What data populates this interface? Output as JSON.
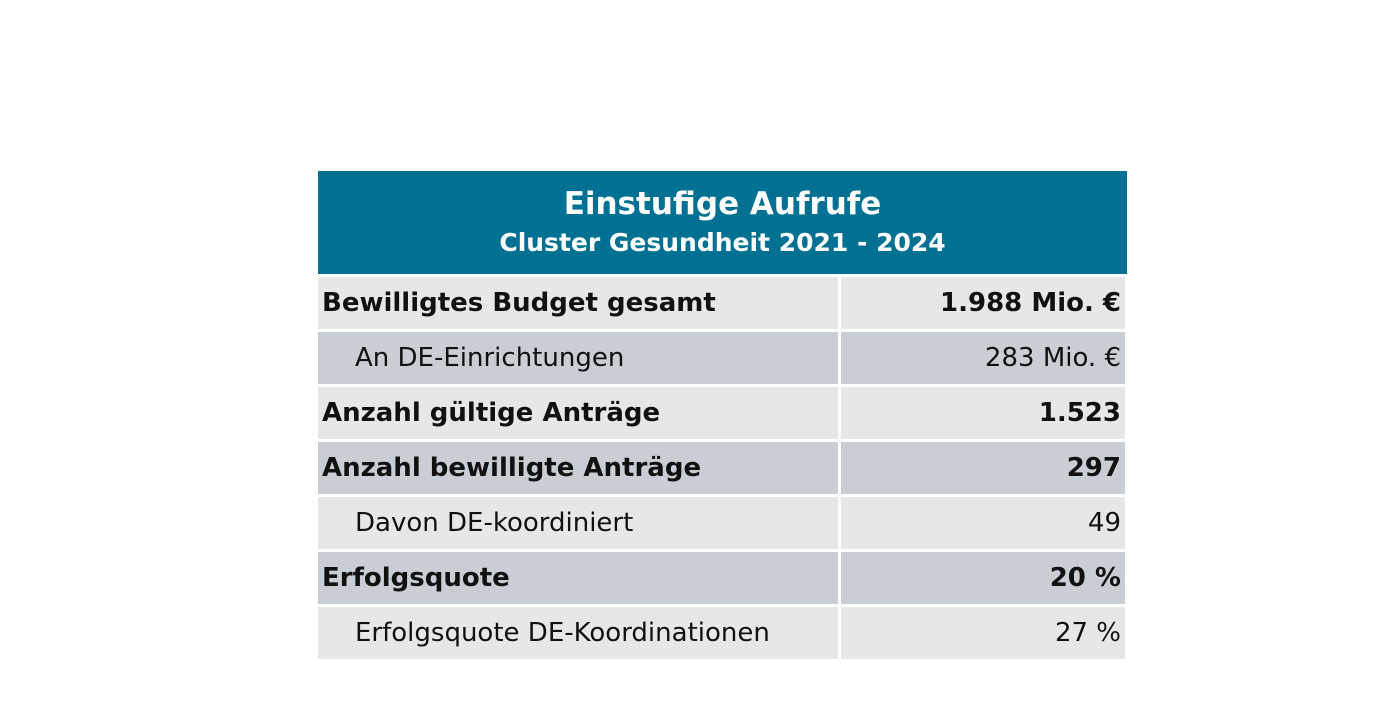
{
  "table": {
    "title": "Einstufige Aufrufe",
    "subtitle": "Cluster Gesundheit 2021 - 2024",
    "rows": [
      {
        "label": "Bewilligtes Budget gesamt",
        "value": "1.988 Mio. €",
        "bold": true,
        "indent": false,
        "shade": "light"
      },
      {
        "label": "An DE-Einrichtungen",
        "value": "283 Mio. €",
        "bold": false,
        "indent": true,
        "shade": "dark"
      },
      {
        "label": "Anzahl gültige Anträge",
        "value": "1.523",
        "bold": true,
        "indent": false,
        "shade": "light"
      },
      {
        "label": "Anzahl bewilligte Anträge",
        "value": "297",
        "bold": true,
        "indent": false,
        "shade": "dark"
      },
      {
        "label": "Davon DE-koordiniert",
        "value": "49",
        "bold": false,
        "indent": true,
        "shade": "light"
      },
      {
        "label": "Erfolgsquote",
        "value": "20 %",
        "bold": true,
        "indent": false,
        "shade": "dark"
      },
      {
        "label": "Erfolgsquote DE-Koordinationen",
        "value": "27 %",
        "bold": false,
        "indent": true,
        "shade": "light"
      }
    ]
  },
  "colors": {
    "header_background": "#007192",
    "header_text": "#ffffff",
    "row_light": "#e6e7e9",
    "row_dark": "#c9ced5",
    "cell_text": "#111111"
  }
}
